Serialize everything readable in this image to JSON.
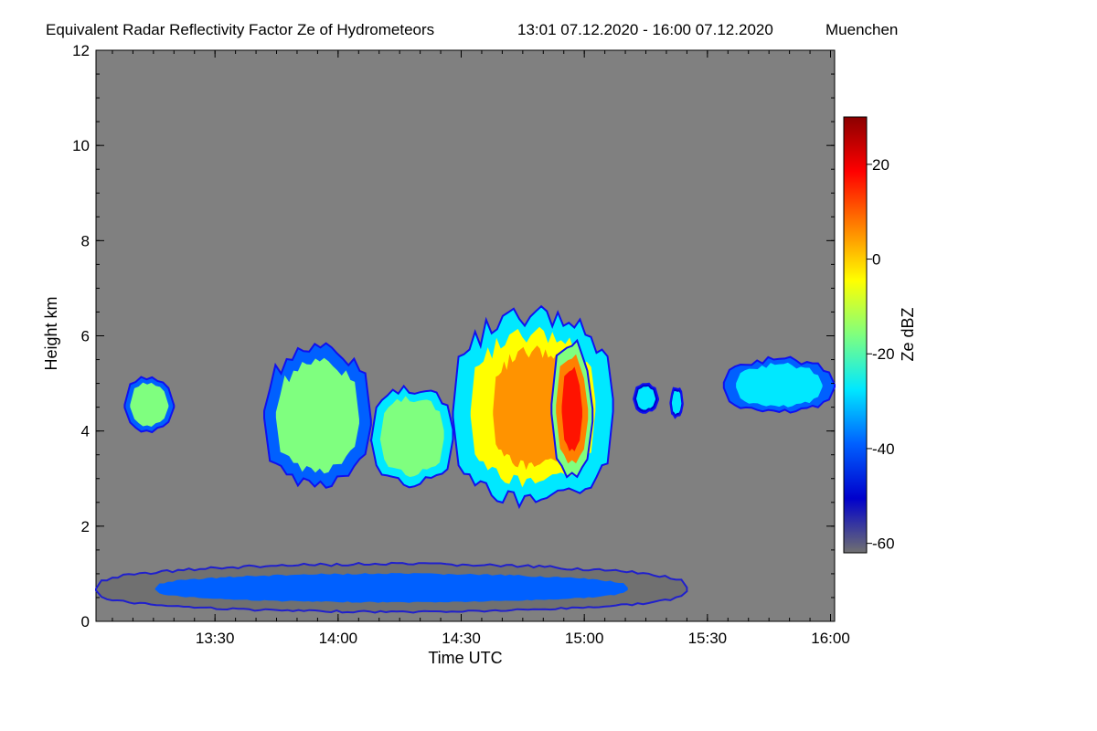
{
  "chart_data": {
    "type": "heatmap",
    "title": "Equivalent Radar Reflectivity Factor Ze of Hydrometeors",
    "period": "13:01 07.12.2020 - 16:00 07.12.2020",
    "location": "Muenchen",
    "xlabel": "Time UTC",
    "ylabel": "Height km",
    "xlim": [
      "13:01",
      "16:01"
    ],
    "ylim": [
      0,
      12
    ],
    "x_ticks": [
      "13:30",
      "14:00",
      "14:30",
      "15:00",
      "15:30",
      "16:00"
    ],
    "y_ticks": [
      0,
      2,
      4,
      6,
      8,
      10,
      12
    ],
    "background_color": "#808080",
    "colorbar": {
      "label": "Ze dBZ",
      "range": [
        -62,
        30
      ],
      "ticks": [
        20,
        0,
        -20,
        -40,
        -60
      ],
      "colormap": [
        "#707070",
        "#0000cc",
        "#0060ff",
        "#00e8ff",
        "#7fff7f",
        "#ffff00",
        "#ff8000",
        "#ff0000",
        "#8b0000"
      ]
    },
    "echoes": [
      {
        "label": "upper small cloud",
        "time_start": "13:08",
        "time_end": "13:20",
        "height_bottom_km": 4.0,
        "height_top_km": 5.1,
        "ze_mean_dbz": -20
      },
      {
        "label": "main cloud western part",
        "time_start": "13:42",
        "time_end": "14:08",
        "height_bottom_km": 2.9,
        "height_top_km": 5.7,
        "ze_mean_dbz": -18
      },
      {
        "label": "main cloud middle",
        "time_start": "14:08",
        "time_end": "14:28",
        "height_bottom_km": 2.9,
        "height_top_km": 4.9,
        "ze_mean_dbz": -15
      },
      {
        "label": "main cloud eastern tower",
        "time_start": "14:28",
        "time_end": "15:07",
        "height_bottom_km": 2.5,
        "height_top_km": 6.4,
        "ze_mean_dbz": -5
      },
      {
        "label": "core",
        "time_start": "14:52",
        "time_end": "15:02",
        "height_bottom_km": 3.1,
        "height_top_km": 5.8,
        "ze_mean_dbz": 5
      },
      {
        "label": "small fragment",
        "time_start": "15:12",
        "time_end": "15:18",
        "height_bottom_km": 4.4,
        "height_top_km": 5.0,
        "ze_mean_dbz": -28
      },
      {
        "label": "small fragment",
        "time_start": "15:21",
        "time_end": "15:24",
        "height_bottom_km": 4.3,
        "height_top_km": 4.9,
        "ze_mean_dbz": -30
      },
      {
        "label": "eastern cloud band",
        "time_start": "15:34",
        "time_end": "16:01",
        "height_bottom_km": 4.4,
        "height_top_km": 5.5,
        "ze_mean_dbz": -25
      },
      {
        "label": "low-level clutter layer",
        "time_start": "13:01",
        "time_end": "15:25",
        "height_bottom_km": 0.2,
        "height_top_km": 1.2,
        "ze_mean_dbz": -40
      }
    ]
  }
}
